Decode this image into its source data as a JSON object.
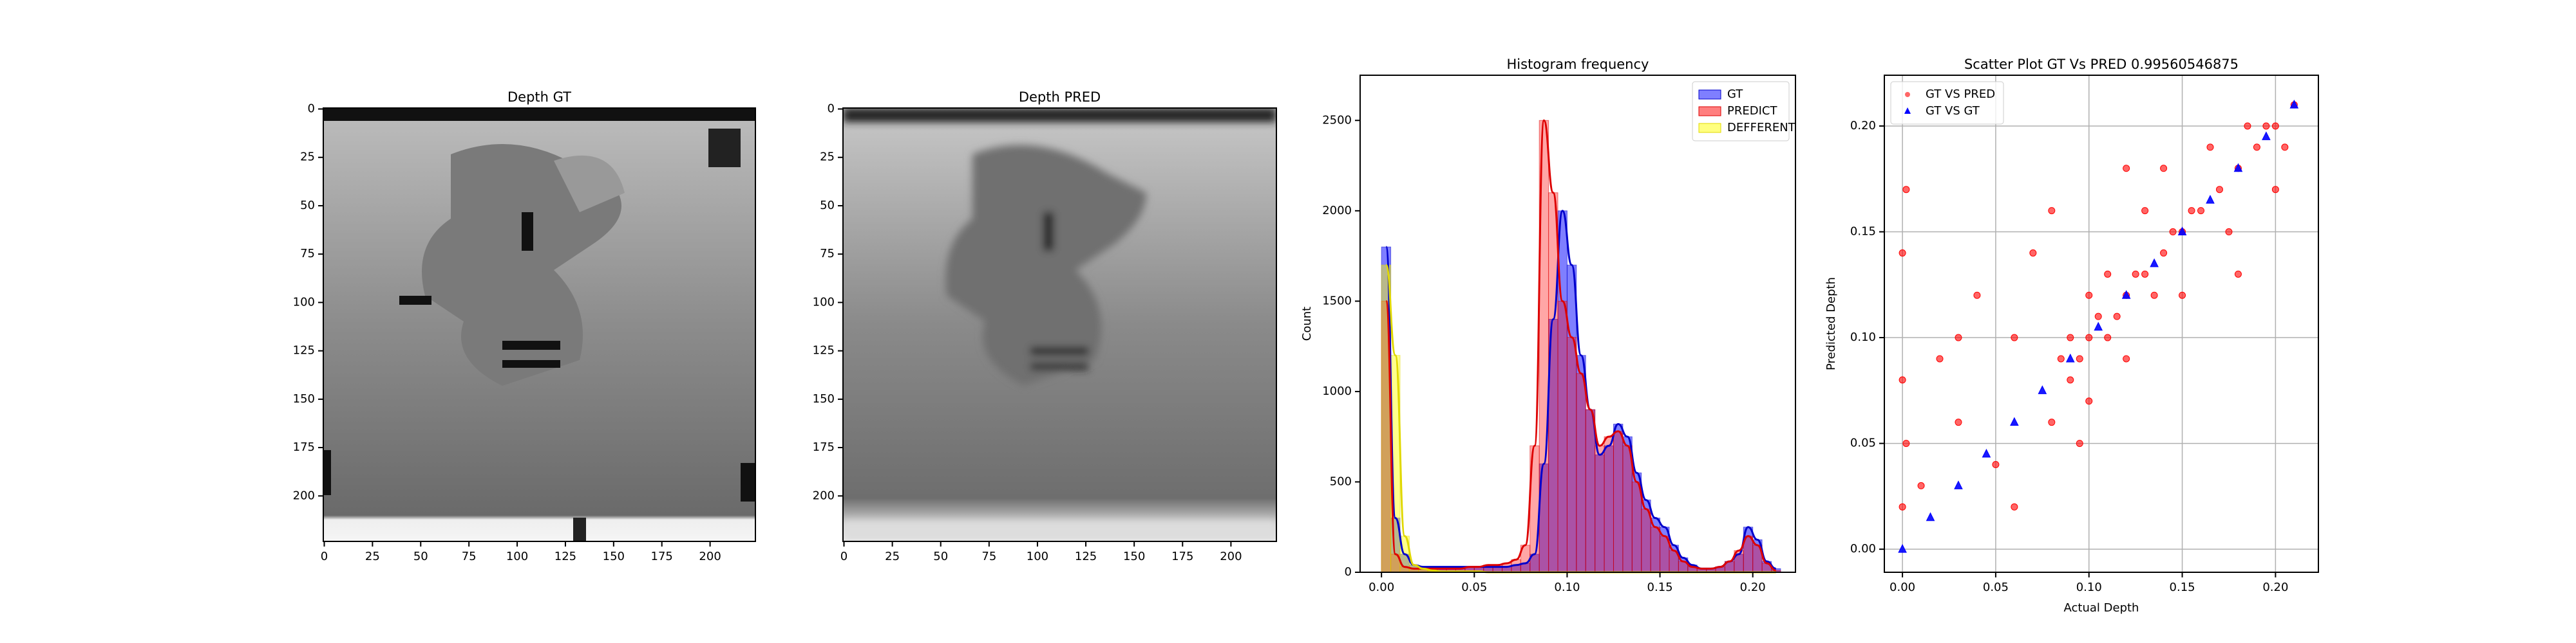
{
  "chart_data": [
    {
      "type": "image",
      "title": "Depth GT",
      "xlim": [
        -0.5,
        223.5
      ],
      "ylim": [
        223.5,
        -0.5
      ],
      "xticks": [
        0,
        25,
        50,
        75,
        100,
        125,
        150,
        175,
        200
      ],
      "yticks": [
        0,
        25,
        50,
        75,
        100,
        125,
        150,
        175,
        200
      ]
    },
    {
      "type": "image",
      "title": "Depth PRED",
      "xlim": [
        -0.5,
        223.5
      ],
      "ylim": [
        223.5,
        -0.5
      ],
      "xticks": [
        0,
        25,
        50,
        75,
        100,
        125,
        150,
        175,
        200
      ],
      "yticks": [
        0,
        25,
        50,
        75,
        100,
        125,
        150,
        175,
        200
      ]
    },
    {
      "type": "histogram",
      "title": "Histogram frequency",
      "ylabel": "Count",
      "legend": "upper right",
      "bins": [
        0,
        0.005,
        0.01,
        0.015,
        0.02,
        0.025,
        0.03,
        0.035,
        0.04,
        0.045,
        0.05,
        0.055,
        0.06,
        0.065,
        0.07,
        0.075,
        0.08,
        0.085,
        0.09,
        0.095,
        0.1,
        0.105,
        0.11,
        0.115,
        0.12,
        0.125,
        0.13,
        0.135,
        0.14,
        0.145,
        0.15,
        0.155,
        0.16,
        0.165,
        0.17,
        0.175,
        0.18,
        0.185,
        0.19,
        0.195,
        0.2,
        0.205,
        0.21,
        0.215
      ],
      "series": [
        {
          "name": "GT",
          "color": "#0000ff",
          "line_color": "#0000cc",
          "values": [
            1800,
            300,
            100,
            40,
            30,
            30,
            30,
            30,
            30,
            30,
            30,
            30,
            30,
            30,
            40,
            50,
            100,
            600,
            1400,
            2000,
            1700,
            1200,
            900,
            650,
            700,
            820,
            750,
            550,
            400,
            300,
            250,
            150,
            80,
            40,
            20,
            20,
            30,
            60,
            100,
            250,
            180,
            60,
            20
          ]
        },
        {
          "name": "PREDICT",
          "color": "#ff0000",
          "line_color": "#dd0000",
          "values": [
            1500,
            100,
            30,
            20,
            20,
            20,
            20,
            20,
            20,
            30,
            30,
            40,
            40,
            50,
            70,
            150,
            700,
            2500,
            2100,
            1500,
            1300,
            1100,
            900,
            700,
            750,
            780,
            700,
            500,
            350,
            250,
            200,
            120,
            60,
            30,
            20,
            20,
            30,
            60,
            120,
            200,
            150,
            50,
            10
          ]
        },
        {
          "name": "DEFFERENT",
          "color": "#ffff00",
          "line_color": "#e0d800",
          "values": [
            1700,
            1200,
            200,
            40,
            20,
            10,
            5,
            5,
            5,
            5,
            5,
            0,
            0,
            0,
            0,
            0,
            0,
            0,
            0,
            0,
            0,
            0,
            0,
            0,
            0,
            0,
            0,
            0,
            0,
            0,
            0,
            0,
            0,
            0,
            0,
            0,
            0,
            0,
            0,
            0,
            0,
            0,
            0
          ]
        }
      ],
      "xlim": [
        -0.0115,
        0.223
      ],
      "ylim": [
        0,
        2750
      ],
      "xticks": [
        {
          "value": 0,
          "label": "0.00"
        },
        {
          "value": 0.05,
          "label": "0.05"
        },
        {
          "value": 0.1,
          "label": "0.10"
        },
        {
          "value": 0.15,
          "label": "0.15"
        },
        {
          "value": 0.2,
          "label": "0.20"
        }
      ],
      "yticks": [
        0,
        500,
        1000,
        1500,
        2000,
        2500
      ]
    },
    {
      "type": "scatter",
      "title": "Scatter Plot GT Vs PRED 0.99560546875",
      "xlabel": "Actual Depth",
      "ylabel": "Predicted Depth",
      "legend": "upper left",
      "grid": true,
      "series": [
        {
          "name": "GT VS PRED",
          "color": "#ff0000",
          "marker": "circle",
          "x": [
            0,
            0,
            0,
            0.002,
            0.002,
            0.01,
            0.02,
            0.03,
            0.04,
            0.05,
            0.06,
            0.07,
            0.08,
            0.085,
            0.09,
            0.09,
            0.095,
            0.1,
            0.1,
            0.1,
            0.105,
            0.11,
            0.11,
            0.115,
            0.12,
            0.12,
            0.125,
            0.13,
            0.13,
            0.135,
            0.14,
            0.14,
            0.145,
            0.15,
            0.15,
            0.155,
            0.16,
            0.165,
            0.17,
            0.175,
            0.18,
            0.185,
            0.19,
            0.195,
            0.2,
            0.205,
            0.21,
            0.06,
            0.08,
            0.12,
            0.095,
            0.03,
            0.18,
            0.2
          ],
          "values": [
            0.02,
            0.08,
            0.14,
            0.05,
            0.17,
            0.03,
            0.09,
            0.06,
            0.12,
            0.04,
            0.1,
            0.14,
            0.06,
            0.09,
            0.08,
            0.1,
            0.09,
            0.1,
            0.07,
            0.12,
            0.11,
            0.1,
            0.13,
            0.11,
            0.12,
            0.09,
            0.13,
            0.13,
            0.16,
            0.12,
            0.14,
            0.18,
            0.15,
            0.15,
            0.12,
            0.16,
            0.16,
            0.19,
            0.17,
            0.15,
            0.18,
            0.2,
            0.19,
            0.2,
            0.2,
            0.19,
            0.21,
            0.02,
            0.16,
            0.18,
            0.05,
            0.1,
            0.13,
            0.17
          ]
        },
        {
          "name": "GT VS GT",
          "color": "#0000ff",
          "marker": "triangle",
          "x": [
            0,
            0.015,
            0.03,
            0.045,
            0.06,
            0.075,
            0.09,
            0.105,
            0.12,
            0.135,
            0.15,
            0.165,
            0.18,
            0.195,
            0.21
          ],
          "values": [
            0,
            0.015,
            0.03,
            0.045,
            0.06,
            0.075,
            0.09,
            0.105,
            0.12,
            0.135,
            0.15,
            0.165,
            0.18,
            0.195,
            0.21
          ]
        }
      ],
      "xlim": [
        -0.0097,
        0.223
      ],
      "ylim": [
        -0.0109,
        0.224
      ],
      "xticks": [
        {
          "value": 0,
          "label": "0.00"
        },
        {
          "value": 0.05,
          "label": "0.05"
        },
        {
          "value": 0.1,
          "label": "0.10"
        },
        {
          "value": 0.15,
          "label": "0.15"
        },
        {
          "value": 0.2,
          "label": "0.20"
        }
      ],
      "yticks": [
        {
          "value": 0,
          "label": "0.00"
        },
        {
          "value": 0.05,
          "label": "0.05"
        },
        {
          "value": 0.1,
          "label": "0.10"
        },
        {
          "value": 0.15,
          "label": "0.15"
        },
        {
          "value": 0.2,
          "label": "0.20"
        }
      ]
    }
  ]
}
